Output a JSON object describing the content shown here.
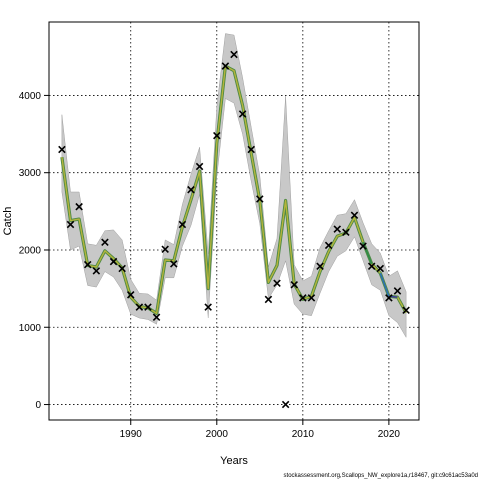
{
  "chart_data": {
    "type": "line",
    "title": "",
    "xlabel": "Years",
    "ylabel": "Catch",
    "footer": "stockassessment.org,Scallops_NW_explore1a,r18467, git:c9c61ac53a0d",
    "xlim": [
      1980.5,
      2023.5
    ],
    "ylim": [
      -200,
      4950
    ],
    "x_ticks": [
      1990,
      2000,
      2010,
      2020
    ],
    "y_ticks": [
      0,
      1000,
      2000,
      3000,
      4000
    ],
    "grid": true,
    "colors": {
      "band": "#c8c8c8",
      "band_edge": "#a0a0a0",
      "line_outer": "#4d8a44",
      "line_inner": "#b4b43c",
      "line_late_green": "#2d8a4a",
      "line_late_blue": "#2a6fb5",
      "line_last": "#3a3a9a",
      "marker": "#000000"
    },
    "observed": {
      "x": [
        1982,
        1983,
        1984,
        1985,
        1986,
        1987,
        1988,
        1989,
        1990,
        1991,
        1992,
        1993,
        1994,
        1995,
        1996,
        1997,
        1998,
        1999,
        2000,
        2001,
        2002,
        2003,
        2004,
        2005,
        2006,
        2007,
        2008,
        2009,
        2010,
        2011,
        2012,
        2013,
        2014,
        2015,
        2016,
        2017,
        2018,
        2019,
        2020,
        2021,
        2022
      ],
      "y": [
        3300,
        2330,
        2560,
        1810,
        1730,
        2100,
        1850,
        1760,
        1420,
        1260,
        1260,
        1130,
        2010,
        1820,
        2330,
        2780,
        3080,
        1260,
        3480,
        4380,
        4530,
        3760,
        3300,
        2660,
        1360,
        1570,
        0,
        1550,
        1380,
        1380,
        1790,
        2060,
        2270,
        2230,
        2450,
        2050,
        1790,
        1760,
        1380,
        1470,
        1220
      ]
    },
    "estimated": {
      "x": [
        1982,
        1983,
        1984,
        1985,
        1986,
        1987,
        1988,
        1989,
        1990,
        1991,
        1992,
        1993,
        1994,
        1995,
        1996,
        1997,
        1998,
        1999,
        2000,
        2001,
        2002,
        2003,
        2004,
        2005,
        2006,
        2007,
        2008,
        2009,
        2010,
        2011,
        2012,
        2013,
        2014,
        2015,
        2016,
        2017,
        2018,
        2019,
        2020,
        2021,
        2022
      ],
      "y": [
        3200,
        2380,
        2400,
        1800,
        1780,
        1990,
        1890,
        1770,
        1390,
        1270,
        1250,
        1180,
        1870,
        1860,
        2300,
        2650,
        3020,
        1500,
        3380,
        4380,
        4320,
        3870,
        3250,
        2640,
        1580,
        1800,
        2640,
        1560,
        1360,
        1400,
        1720,
        1980,
        2180,
        2220,
        2420,
        2100,
        1820,
        1700,
        1400,
        1390,
        1190
      ],
      "lower": [
        2750,
        2000,
        2050,
        1540,
        1520,
        1720,
        1650,
        1480,
        1170,
        1120,
        1100,
        1040,
        1640,
        1640,
        2050,
        2320,
        2720,
        1120,
        2950,
        3960,
        3900,
        3500,
        2890,
        2340,
        1370,
        1550,
        1860,
        1300,
        1170,
        1150,
        1440,
        1720,
        1920,
        1990,
        2170,
        1860,
        1550,
        1480,
        1150,
        1060,
        870
      ],
      "upper": [
        3750,
        2750,
        2750,
        2080,
        2060,
        2250,
        2260,
        2130,
        1620,
        1440,
        1430,
        1350,
        2130,
        2070,
        2590,
        2980,
        3330,
        1950,
        3850,
        4800,
        4780,
        4230,
        3590,
        2960,
        1780,
        2150,
        3990,
        1810,
        1600,
        1660,
        2030,
        2250,
        2450,
        2470,
        2650,
        2350,
        2080,
        1960,
        1660,
        1730,
        1460
      ]
    }
  }
}
